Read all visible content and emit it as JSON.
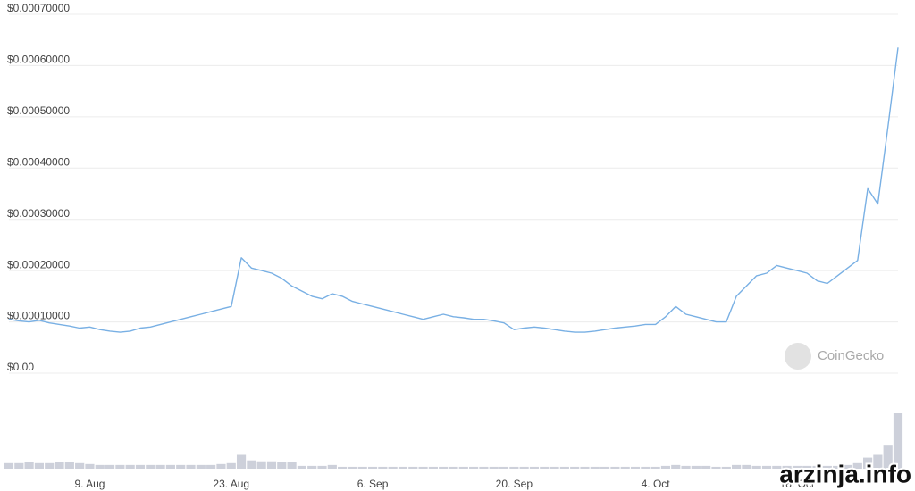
{
  "chart_data": {
    "type": "line",
    "categories": [
      null,
      null,
      null,
      null,
      null,
      null,
      null,
      null,
      "9. Aug",
      null,
      null,
      null,
      null,
      null,
      null,
      null,
      null,
      null,
      null,
      null,
      null,
      null,
      "23. Aug",
      null,
      null,
      null,
      null,
      null,
      null,
      null,
      null,
      null,
      null,
      null,
      null,
      null,
      "6. Sep",
      null,
      null,
      null,
      null,
      null,
      null,
      null,
      null,
      null,
      null,
      null,
      null,
      null,
      "20. Sep",
      null,
      null,
      null,
      null,
      null,
      null,
      null,
      null,
      null,
      null,
      null,
      null,
      null,
      "4. Oct",
      null,
      null,
      null,
      null,
      null,
      null,
      null,
      null,
      null,
      null,
      null,
      null,
      null,
      "18. Oct",
      null,
      null,
      null,
      null,
      null,
      null,
      null,
      null,
      null,
      null
    ],
    "values": [
      0.000105,
      0.000102,
      0.0001,
      0.000103,
      9.8e-05,
      9.5e-05,
      9.2e-05,
      8.8e-05,
      9e-05,
      8.5e-05,
      8.2e-05,
      8e-05,
      8.2e-05,
      8.8e-05,
      9e-05,
      9.5e-05,
      0.0001,
      0.000105,
      0.00011,
      0.000115,
      0.00012,
      0.000125,
      0.00013,
      0.000225,
      0.000205,
      0.0002,
      0.000195,
      0.000185,
      0.00017,
      0.00016,
      0.00015,
      0.000145,
      0.000155,
      0.00015,
      0.00014,
      0.000135,
      0.00013,
      0.000125,
      0.00012,
      0.000115,
      0.00011,
      0.000105,
      0.00011,
      0.000115,
      0.00011,
      0.000108,
      0.000105,
      0.000105,
      0.000102,
      9.8e-05,
      8.5e-05,
      8.8e-05,
      9e-05,
      8.8e-05,
      8.5e-05,
      8.2e-05,
      8e-05,
      8e-05,
      8.2e-05,
      8.5e-05,
      8.8e-05,
      9e-05,
      9.2e-05,
      9.5e-05,
      9.5e-05,
      0.00011,
      0.00013,
      0.000115,
      0.00011,
      0.000105,
      0.0001,
      0.0001,
      0.00015,
      0.00017,
      0.00019,
      0.000195,
      0.00021,
      0.000205,
      0.0002,
      0.000195,
      0.00018,
      0.000175,
      0.00019,
      0.000205,
      0.00022,
      0.00036,
      0.00033,
      0.00048,
      0.000635
    ],
    "color": "#79b0e4",
    "ylim": [
      0,
      0.0007
    ],
    "yticks": [
      {
        "value": 0,
        "label": "$0.00"
      },
      {
        "value": 0.0001,
        "label": "$0.00010000"
      },
      {
        "value": 0.0002,
        "label": "$0.00020000"
      },
      {
        "value": 0.0003,
        "label": "$0.00030000"
      },
      {
        "value": 0.0004,
        "label": "$0.00040000"
      },
      {
        "value": 0.0005,
        "label": "$0.00050000"
      },
      {
        "value": 0.0006,
        "label": "$0.00060000"
      },
      {
        "value": 0.0007,
        "label": "$0.00070000"
      }
    ],
    "grid": true,
    "volume": {
      "color": "#cdd0da",
      "values": [
        6,
        6,
        7,
        6,
        6,
        7,
        7,
        6,
        5,
        4,
        4,
        4,
        4,
        4,
        4,
        4,
        4,
        4,
        4,
        4,
        4,
        5,
        6,
        15,
        9,
        8,
        8,
        7,
        7,
        3,
        3,
        3,
        4,
        2,
        2,
        2,
        2,
        2,
        2,
        2,
        2,
        2,
        2,
        2,
        2,
        2,
        2,
        2,
        2,
        2,
        2,
        2,
        2,
        2,
        2,
        2,
        2,
        2,
        2,
        2,
        2,
        2,
        2,
        2,
        2,
        3,
        4,
        3,
        3,
        3,
        2,
        2,
        4,
        4,
        3,
        3,
        3,
        3,
        3,
        3,
        3,
        3,
        3,
        4,
        6,
        12,
        15,
        25,
        60
      ]
    },
    "annotations": [
      "CoinGecko",
      "arzinja.info"
    ]
  }
}
